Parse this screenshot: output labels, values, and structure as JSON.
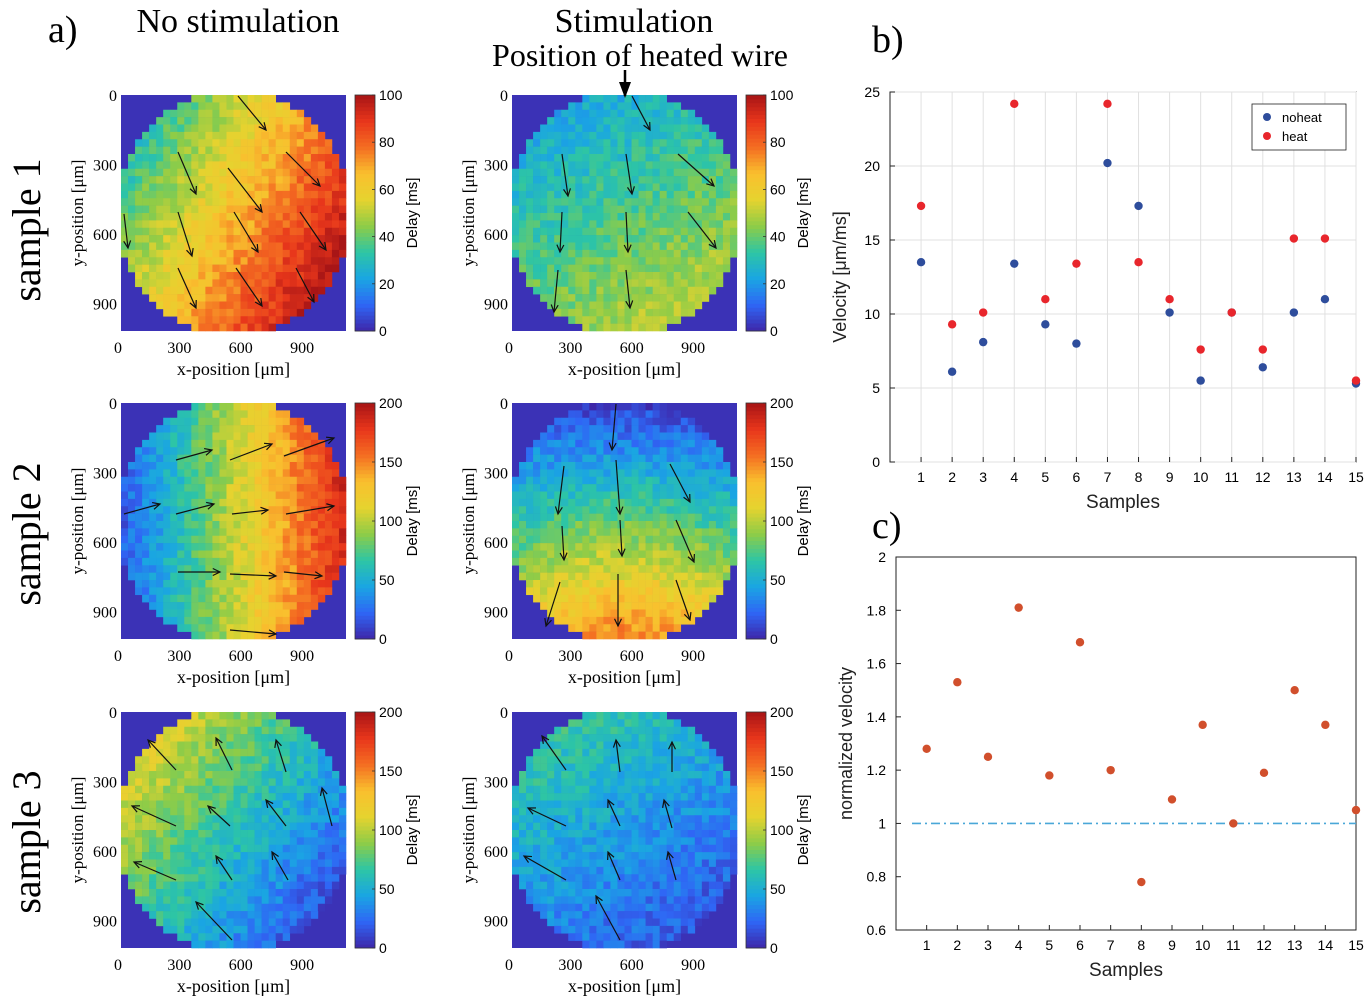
{
  "panel_labels": {
    "a": "a)",
    "b": "b)",
    "c": "c)"
  },
  "column_titles": {
    "left": "No stimulation",
    "right_line1": "Stimulation",
    "right_line2": "Position of heated wire"
  },
  "row_labels": [
    "sample 1",
    "sample 2",
    "sample 3"
  ],
  "heatmap_axes": {
    "xlabel": "x-position [μm]",
    "ylabel": "y-position [μm]",
    "x_ticks": [
      "0",
      "300",
      "600",
      "900"
    ],
    "y_ticks": [
      "0",
      "300",
      "600",
      "900"
    ],
    "colorbar_label": "Delay [ms]"
  },
  "colors": {
    "colormap": [
      "#3e26a8",
      "#2f66f5",
      "#1aa5e3",
      "#2dc5a5",
      "#8dcc48",
      "#e5d32f",
      "#f9c02e",
      "#f46e22",
      "#e8361b",
      "#a81516"
    ],
    "arrow": "#111111",
    "noheat": "#2e4d9c",
    "heat": "#e8262c",
    "normalized": "#d14f2c",
    "reference_line": "#4aa7d8",
    "grid": "#e0e0e0"
  },
  "chart_data": [
    {
      "type": "heatmap",
      "panel": "a",
      "sample": "sample 1",
      "condition": "No stimulation",
      "xlabel": "x-position [μm]",
      "ylabel": "y-position [μm]",
      "colorbar": {
        "label": "Delay [ms]",
        "range": [
          0,
          100
        ],
        "ticks": [
          "0",
          "20",
          "40",
          "60",
          "80",
          "100"
        ]
      },
      "gradient": {
        "base": 22,
        "gx": 55,
        "gy": 32,
        "hump": 0
      }
    },
    {
      "type": "heatmap",
      "panel": "a",
      "sample": "sample 1",
      "condition": "Stimulation",
      "xlabel": "x-position [μm]",
      "ylabel": "y-position [μm]",
      "colorbar": {
        "label": "Delay [ms]",
        "range": [
          0,
          100
        ],
        "ticks": [
          "0",
          "20",
          "40",
          "60",
          "80",
          "100"
        ]
      },
      "gradient": {
        "base": 20,
        "gx": 12,
        "gy": 22,
        "hump": 0
      }
    },
    {
      "type": "heatmap",
      "panel": "a",
      "sample": "sample 2",
      "condition": "No stimulation",
      "xlabel": "x-position [μm]",
      "ylabel": "y-position [μm]",
      "colorbar": {
        "label": "Delay [ms]",
        "range": [
          0,
          200
        ],
        "ticks": [
          "0",
          "50",
          "100",
          "150",
          "200"
        ]
      },
      "gradient": {
        "base": 20,
        "gx": 165,
        "gy": 0,
        "hump": 0
      }
    },
    {
      "type": "heatmap",
      "panel": "a",
      "sample": "sample 2",
      "condition": "Stimulation",
      "xlabel": "x-position [μm]",
      "ylabel": "y-position [μm]",
      "colorbar": {
        "label": "Delay [ms]",
        "range": [
          0,
          200
        ],
        "ticks": [
          "0",
          "50",
          "100",
          "150",
          "200"
        ]
      },
      "gradient": {
        "base": 10,
        "gx": 0,
        "gy": 110,
        "hump": 30
      }
    },
    {
      "type": "heatmap",
      "panel": "a",
      "sample": "sample 3",
      "condition": "No stimulation",
      "xlabel": "x-position [μm]",
      "ylabel": "y-position [μm]",
      "colorbar": {
        "label": "Delay [ms]",
        "range": [
          0,
          200
        ],
        "ticks": [
          "0",
          "50",
          "100",
          "150",
          "200"
        ]
      },
      "gradient": {
        "base": 125,
        "gx": -70,
        "gy": -55,
        "hump": 0
      }
    },
    {
      "type": "heatmap",
      "panel": "a",
      "sample": "sample 3",
      "condition": "Stimulation",
      "xlabel": "x-position [μm]",
      "ylabel": "y-position [μm]",
      "colorbar": {
        "label": "Delay [ms]",
        "range": [
          0,
          200
        ],
        "ticks": [
          "0",
          "50",
          "100",
          "150",
          "200"
        ]
      },
      "gradient": {
        "base": 75,
        "gx": -25,
        "gy": -40,
        "hump": 0
      }
    },
    {
      "type": "scatter",
      "panel": "b",
      "xlabel": "Samples",
      "ylabel": "Velocity [μm/ms]",
      "xlim": [
        0,
        15
      ],
      "ylim": [
        0,
        25
      ],
      "x_ticks": [
        1,
        2,
        3,
        4,
        5,
        6,
        7,
        8,
        9,
        10,
        11,
        12,
        13,
        14,
        15
      ],
      "y_ticks": [
        0,
        5,
        10,
        15,
        20,
        25
      ],
      "grid": true,
      "legend": "top-right",
      "x": [
        1,
        2,
        3,
        4,
        5,
        6,
        7,
        8,
        9,
        10,
        11,
        12,
        13,
        14,
        15
      ],
      "series": [
        {
          "name": "noheat",
          "values": [
            13.5,
            6.1,
            8.1,
            13.4,
            9.3,
            8.0,
            20.2,
            17.3,
            10.1,
            5.5,
            10.1,
            6.4,
            10.1,
            11.0,
            5.3
          ]
        },
        {
          "name": "heat",
          "values": [
            17.3,
            9.3,
            10.1,
            24.2,
            11.0,
            13.4,
            24.2,
            13.5,
            11.0,
            7.6,
            10.1,
            7.6,
            15.1,
            15.1,
            5.5
          ]
        }
      ]
    },
    {
      "type": "scatter",
      "panel": "c",
      "xlabel": "Samples",
      "ylabel": "normalized velocity",
      "xlim": [
        0,
        15
      ],
      "ylim": [
        0.6,
        2
      ],
      "x_ticks": [
        1,
        2,
        3,
        4,
        5,
        6,
        7,
        8,
        9,
        10,
        11,
        12,
        13,
        14,
        15
      ],
      "y_ticks": [
        "0.6",
        "0.8",
        "1",
        "1.2",
        "1.4",
        "1.6",
        "1.8",
        "2"
      ],
      "grid": false,
      "reference_line": 1,
      "x": [
        1,
        2,
        3,
        4,
        5,
        6,
        7,
        8,
        9,
        10,
        11,
        12,
        13,
        14,
        15
      ],
      "values": [
        1.28,
        1.53,
        1.25,
        1.81,
        1.18,
        1.68,
        1.2,
        0.78,
        1.09,
        1.37,
        1.0,
        1.19,
        1.5,
        1.37,
        1.05
      ]
    }
  ]
}
